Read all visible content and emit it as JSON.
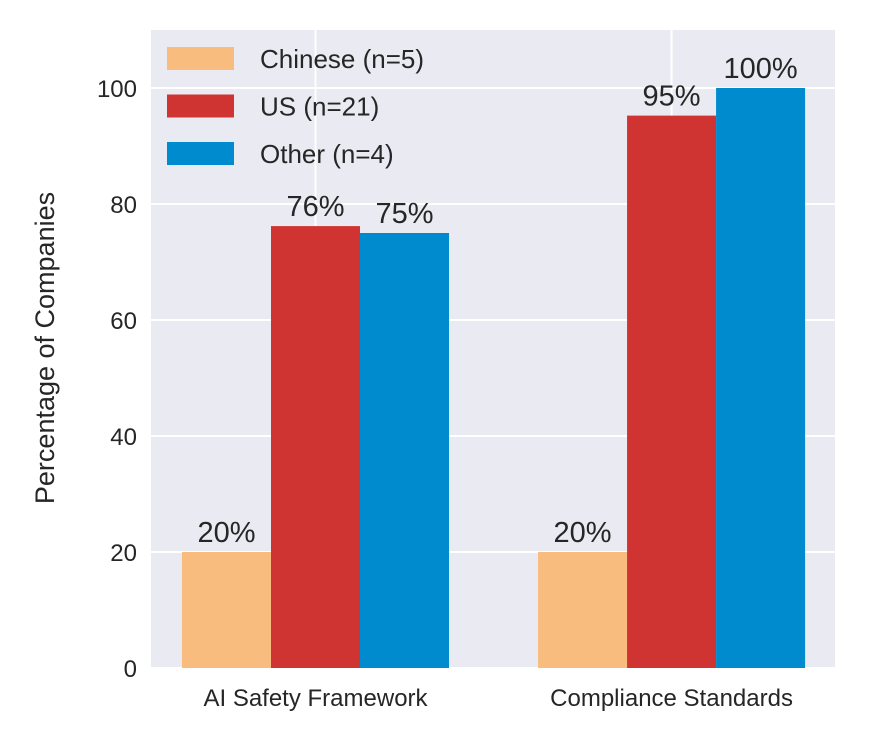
{
  "chart_data": {
    "type": "bar",
    "title": "",
    "xlabel": "",
    "ylabel": "Percentage of Companies",
    "categories": [
      "AI Safety Framework",
      "Compliance Standards"
    ],
    "series": [
      {
        "name": "Chinese (n=5)",
        "color": "#F8BC7E",
        "values": [
          20,
          20
        ],
        "labels": [
          "20%",
          "20%"
        ]
      },
      {
        "name": "US (n=21)",
        "color": "#D03432",
        "values": [
          76.19,
          95.24
        ],
        "labels": [
          "76%",
          "95%"
        ]
      },
      {
        "name": "Other (n=4)",
        "color": "#008BCF",
        "values": [
          75,
          100
        ],
        "labels": [
          "75%",
          "100%"
        ]
      }
    ],
    "ylim": [
      0,
      110
    ],
    "yticks": [
      0,
      20,
      40,
      60,
      80,
      100
    ],
    "grid": true,
    "legend_position": "top-left",
    "background": "#EAEAF2"
  }
}
